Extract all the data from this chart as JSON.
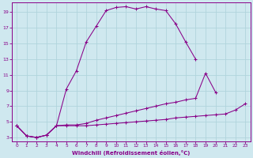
{
  "xlabel": "Windchill (Refroidissement éolien,°C)",
  "background_color": "#cfe8ef",
  "grid_color": "#b0d4dc",
  "line_color": "#880088",
  "xlim": [
    -0.5,
    23.5
  ],
  "ylim": [
    2.5,
    20.2
  ],
  "xticks": [
    0,
    1,
    2,
    3,
    4,
    5,
    6,
    7,
    8,
    9,
    10,
    11,
    12,
    13,
    14,
    15,
    16,
    17,
    18,
    19,
    20,
    21,
    22,
    23
  ],
  "yticks": [
    3,
    5,
    7,
    9,
    11,
    13,
    15,
    17,
    19
  ],
  "line1_y": [
    4.5,
    3.2,
    3.0,
    3.3,
    4.5,
    9.2,
    11.5,
    15.2,
    17.2,
    19.2,
    19.6,
    19.7,
    19.4,
    19.7,
    19.4,
    19.2,
    17.5,
    15.2,
    13.0,
    null,
    null,
    null,
    null,
    null
  ],
  "line2_y": [
    4.5,
    3.2,
    3.0,
    3.3,
    4.5,
    4.6,
    4.6,
    4.8,
    5.2,
    5.5,
    5.8,
    6.1,
    6.4,
    6.7,
    7.0,
    7.3,
    7.5,
    7.8,
    8.0,
    11.2,
    8.8,
    null,
    null,
    null
  ],
  "line3_y": [
    4.5,
    3.2,
    3.0,
    3.3,
    4.5,
    4.5,
    4.5,
    4.5,
    4.6,
    4.7,
    4.8,
    4.9,
    5.0,
    5.1,
    5.2,
    5.3,
    5.5,
    5.6,
    5.7,
    5.8,
    5.9,
    6.0,
    6.5,
    7.3
  ]
}
